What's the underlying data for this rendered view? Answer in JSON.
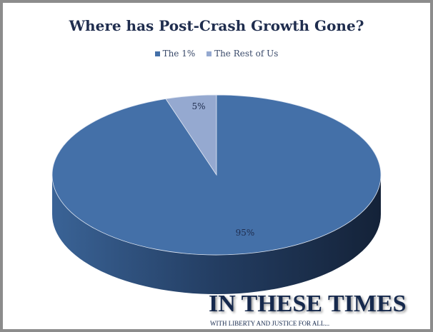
{
  "chart_data": {
    "type": "pie",
    "style": "3d",
    "title": "Where has Post-Crash Growth Gone?",
    "legend_position": "top",
    "series": [
      {
        "name": "The 1%",
        "value": 95,
        "label": "95%",
        "color": "#4470a8"
      },
      {
        "name": "The Rest of Us",
        "value": 5,
        "label": "5%",
        "color": "#95a9d0"
      }
    ]
  },
  "logo": {
    "name": "IN THESE TIMES",
    "tagline": "WITH LIBERTY AND JUSTICE FOR ALL..."
  }
}
